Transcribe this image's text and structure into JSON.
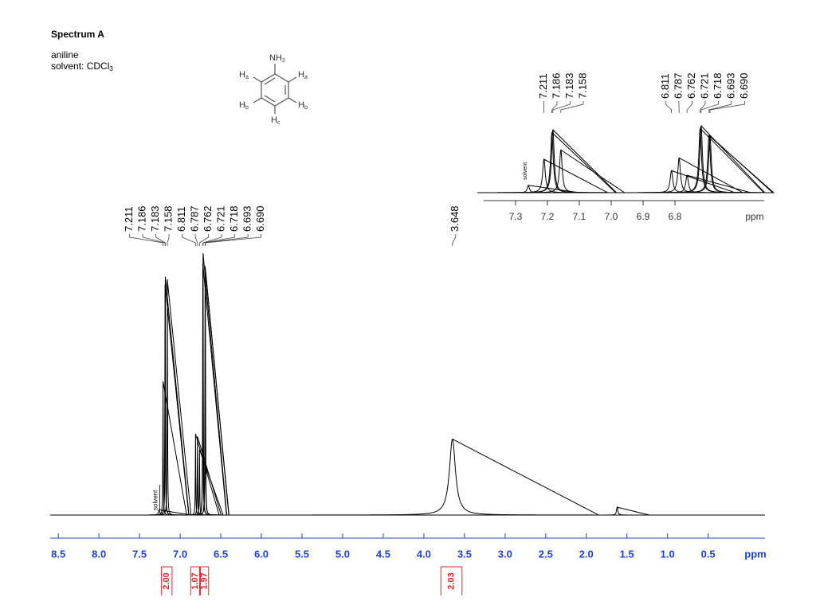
{
  "chart_data": [
    {
      "type": "nmr",
      "title": "Spectrum A",
      "compound": "aniline",
      "solvent": {
        "text": "solvent: CDCl",
        "sub": "3"
      },
      "xlabel": "ppm",
      "xlim": [
        8.6,
        -0.2
      ],
      "ylim": [
        0,
        100
      ],
      "xticks": [
        8.5,
        {
          "value": 8,
          "label": "8.0"
        },
        7.5,
        {
          "value": 7,
          "label": "7.0"
        },
        6.5,
        {
          "value": 6,
          "label": "6.0"
        },
        5.5,
        {
          "value": 5,
          "label": "5.0"
        },
        4.5,
        {
          "value": 4,
          "label": "4.0"
        },
        3.5,
        {
          "value": 3,
          "label": "3.0"
        },
        2.5,
        {
          "value": 2,
          "label": "2.0"
        },
        1.5,
        {
          "value": 1,
          "label": "1.0"
        },
        0.5
      ],
      "axis_color": "#1f3fd0",
      "line_color": "#000000",
      "peaks": {
        "x": [
          7.211,
          7.186,
          7.183,
          7.158,
          6.811,
          6.787,
          6.762,
          6.721,
          6.718,
          6.693,
          {
            "value": 6.69,
            "label": "6.690"
          },
          3.648
        ],
        "values": [
          51,
          88,
          91,
          90,
          31,
          30,
          25,
          96,
          100,
          95,
          94,
          29
        ],
        "linewidths": [
          0.003,
          0.003,
          0.003,
          0.003,
          0.003,
          0.003,
          0.003,
          0.003,
          0.003,
          0.003,
          0.003,
          0.045
        ]
      },
      "solvent_peak": {
        "label": "solvent",
        "x": 7.26,
        "value": 2,
        "linewidth": 0.01
      },
      "other_peaks": {
        "x": [
          1.62
        ],
        "values": [
          3
        ],
        "linewidths": [
          0.01
        ]
      },
      "integrals": {
        "ranges": [
          [
            7.23,
            7.1
          ],
          [
            6.87,
            6.76
          ],
          [
            6.75,
            6.65
          ],
          [
            3.79,
            3.53
          ]
        ],
        "values": [
          2,
          1.07,
          1.97,
          2.03
        ],
        "value_labels": [
          "2.00",
          "1.07",
          "1.97",
          "2.03"
        ],
        "color": "#e8202a"
      }
    },
    {
      "type": "nmr",
      "xlabel": "ppm",
      "xlim": [
        7.4,
        6.52
      ],
      "ylim": [
        0,
        100
      ],
      "xticks": [
        7.3,
        7.2,
        7.1,
        {
          "value": 7,
          "label": "7.0"
        },
        6.9,
        6.8
      ],
      "axis_color": "#333333",
      "line_color": "#000000",
      "peaks": {
        "x": [
          7.211,
          7.186,
          7.183,
          7.158,
          6.811,
          6.787,
          6.762,
          6.721,
          6.718,
          6.693,
          {
            "value": 6.69,
            "label": "6.690"
          }
        ],
        "values": [
          50,
          90,
          94,
          64,
          33,
          52,
          26,
          96,
          100,
          86,
          84
        ],
        "linewidths": [
          0.005,
          0.005,
          0.005,
          0.005,
          0.005,
          0.005,
          0.005,
          0.005,
          0.005,
          0.005,
          0.005
        ]
      },
      "solvent_peak": {
        "label": "solvent",
        "x": 7.26,
        "value": 11,
        "linewidth": 0.004
      }
    }
  ],
  "structure": {
    "substituent": {
      "text": "NH",
      "sub": "2"
    },
    "hydrogens": [
      {
        "text": "H",
        "sub": "a"
      },
      {
        "text": "H",
        "sub": "a"
      },
      {
        "text": "H",
        "sub": "b"
      },
      {
        "text": "H",
        "sub": "b"
      },
      {
        "text": "H",
        "sub": "c"
      }
    ]
  }
}
